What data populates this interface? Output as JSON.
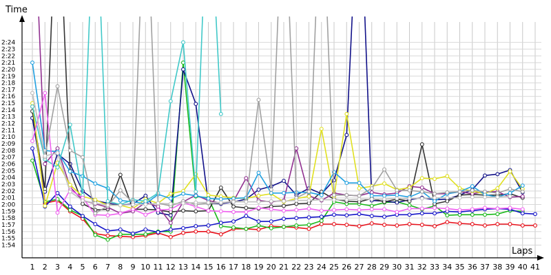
{
  "chart_data": {
    "type": "line",
    "title": "",
    "xlabel": "Laps",
    "ylabel": "Time",
    "grid": true,
    "legend": "none",
    "x": [
      1,
      2,
      3,
      4,
      5,
      6,
      7,
      8,
      9,
      10,
      11,
      12,
      13,
      14,
      15,
      16,
      17,
      18,
      19,
      20,
      21,
      22,
      23,
      24,
      25,
      26,
      27,
      28,
      29,
      30,
      31,
      32,
      33,
      34,
      35,
      36,
      37,
      38,
      39,
      40,
      41
    ],
    "x_tick_labels": [
      "1",
      "2",
      "3",
      "4",
      "5",
      "6",
      "7",
      "8",
      "9",
      "10",
      "11",
      "12",
      "13",
      "14",
      "15",
      "16",
      "17",
      "18",
      "19",
      "20",
      "21",
      "22",
      "23",
      "24",
      "25",
      "26",
      "27",
      "28",
      "29",
      "30",
      "31",
      "32",
      "33",
      "34",
      "35",
      "36",
      "37",
      "38",
      "39",
      "40",
      "41"
    ],
    "y_tick_labels": [
      "1:54",
      "1:55",
      "1:56",
      "1:57",
      "1:58",
      "1:59",
      "2:00",
      "2:01",
      "2:02",
      "2:03",
      "2:04",
      "2:05",
      "2:06",
      "2:07",
      "2:08",
      "2:09",
      "2:10",
      "2:11",
      "2:12",
      "2:13",
      "2:14",
      "2:15",
      "2:16",
      "2:17",
      "2:18",
      "2:19",
      "2:20",
      "2:21",
      "2:22",
      "2:23",
      "2:24"
    ],
    "y_tick_values": [
      114,
      115,
      116,
      117,
      118,
      119,
      120,
      121,
      122,
      123,
      124,
      125,
      126,
      127,
      128,
      129,
      130,
      131,
      132,
      133,
      134,
      135,
      136,
      137,
      138,
      139,
      140,
      141,
      142,
      143,
      144
    ],
    "y_unit": "seconds",
    "ylim": [
      113,
      146
    ],
    "xlim": [
      0.5,
      41.5
    ],
    "series": [
      {
        "color": "#e8101a",
        "values": [
          134.5,
          120.2,
          120.6,
          119,
          117.9,
          115.7,
          115.4,
          115.3,
          115.2,
          115.4,
          115.8,
          115.2,
          115.8,
          116,
          116,
          115.6,
          116.4,
          116.4,
          116.3,
          116.8,
          116.7,
          116.6,
          116.4,
          117.1,
          117.1,
          117,
          116.8,
          117.2,
          117,
          116.9,
          117.1,
          117,
          116.8,
          117.4,
          117.2,
          117.1,
          116.9,
          117.1,
          117.1,
          116.9,
          116.9
        ]
      },
      {
        "color": "#18b818",
        "values": [
          126.5,
          120.4,
          120.8,
          119.2,
          118.3,
          115.5,
          114.8,
          115.6,
          115.6,
          115.6,
          116,
          116,
          141,
          121.2,
          121,
          116.8,
          116.6,
          116.4,
          116.9,
          116.5,
          116.7,
          116.9,
          117,
          117.6,
          120.4,
          120.1,
          120.1,
          119.8,
          120.3,
          120.4,
          119.9,
          119.3,
          119.8,
          118.4,
          118.5,
          118.5,
          118.5,
          118.6,
          119.1,
          119,
          null
        ]
      },
      {
        "color": "#1414c8",
        "values": [
          128.3,
          119.7,
          121.7,
          119.7,
          118.3,
          117.1,
          116.1,
          116.3,
          115.7,
          116.3,
          115.9,
          116.3,
          116.5,
          116.8,
          116.9,
          117.3,
          117.5,
          118.3,
          117.5,
          117.5,
          117.9,
          118,
          118.1,
          118.2,
          118.5,
          118.4,
          118.6,
          118.3,
          118.2,
          118.5,
          118.5,
          118.7,
          118.7,
          119,
          118.9,
          119.1,
          119.3,
          119.4,
          119.3,
          118.7,
          118.6
        ]
      },
      {
        "color": "#101088",
        "values": [
          132.8,
          121.9,
          127.5,
          126,
          122,
          120.6,
          120.2,
          119.9,
          120.1,
          121.3,
          118.8,
          118.4,
          140,
          134.9,
          120.2,
          120.1,
          120.4,
          120.8,
          122.2,
          122.7,
          123.5,
          121.4,
          122.4,
          121.6,
          123.6,
          130.3,
          170,
          120.6,
          120.5,
          120.3,
          120.7,
          121,
          120.7,
          120.8,
          121.4,
          122.2,
          124.3,
          124.5,
          125.1,
          121.8,
          null
        ]
      },
      {
        "color": "#333333",
        "values": [
          133.8,
          122.3,
          170,
          125,
          120.1,
          119.2,
          119.3,
          124.4,
          119.3,
          119.3,
          119.2,
          118.9,
          119.1,
          119,
          119.1,
          122.5,
          119.7,
          119.5,
          119.4,
          119.7,
          119.8,
          120.1,
          120.2,
          121.9,
          120.8,
          120.5,
          120.4,
          120.9,
          120.4,
          120.8,
          120.5,
          128.9,
          120.1,
          120.5,
          121.4,
          121.5,
          121.4,
          121.4,
          121.6,
          121,
          null
        ]
      },
      {
        "color": "#903090",
        "values": [
          170,
          126,
          128.3,
          122.6,
          120.6,
          120.1,
          119.6,
          118.7,
          119,
          120.3,
          119.7,
          117.3,
          120.4,
          121.4,
          120.6,
          120.2,
          120.5,
          123.9,
          120.6,
          120.4,
          120.6,
          128.3,
          121.3,
          120.6,
          121.7,
          121.4,
          121.3,
          121.8,
          121.5,
          121.7,
          122.7,
          122.5,
          121.6,
          121.6,
          121.9,
          121.6,
          121.9,
          121.9,
          121.1,
          121.2,
          null
        ]
      },
      {
        "color": "#e0e020",
        "values": [
          135,
          119.8,
          126.2,
          122.9,
          121.2,
          120.7,
          119.9,
          119.9,
          119.4,
          120.8,
          120.2,
          121.6,
          122,
          124.5,
          121.4,
          121.2,
          121,
          120.9,
          121.3,
          121.6,
          120.4,
          120.9,
          121.2,
          131.2,
          121.2,
          133.4,
          122.4,
          122.7,
          123.1,
          122.2,
          122.5,
          123.9,
          123.8,
          124.2,
          122.4,
          122,
          121.6,
          122.4,
          124.9,
          122.3,
          null
        ]
      },
      {
        "color": "#20a0e0",
        "values": [
          141,
          128,
          127.8,
          124.9,
          124.2,
          123.1,
          122.4,
          120.6,
          120.4,
          120.1,
          121.5,
          120.9,
          121.6,
          121.3,
          120.9,
          120.8,
          120.9,
          121,
          124.7,
          121.7,
          121.7,
          121.8,
          121.8,
          121.4,
          124.8,
          123.2,
          123.2,
          121.3,
          121.3,
          121.4,
          121.1,
          121.9,
          120.5,
          121.6,
          121.9,
          122.7,
          121.5,
          121.1,
          121.7,
          122.8,
          null
        ]
      },
      {
        "color": "#40c8c8",
        "values": [
          134.5,
          126.7,
          125.5,
          131.8,
          121.4,
          170,
          120.5,
          120,
          120.7,
          120.5,
          121.7,
          135.3,
          144,
          121.9,
          170,
          133.4,
          null,
          null,
          null,
          null,
          null,
          null,
          null,
          null,
          null,
          null,
          null,
          null,
          null,
          null,
          null,
          null,
          null,
          null,
          null,
          null,
          null,
          null,
          null,
          null,
          null
        ]
      },
      {
        "color": "#f060f0",
        "values": [
          129.4,
          136.5,
          118.8,
          122.2,
          121,
          118.5,
          118.4,
          118.7,
          119.3,
          118.5,
          119.2,
          119.3,
          120.3,
          119.7,
          119.1,
          119,
          118.9,
          118.9,
          119.5,
          119.3,
          119.1,
          119.2,
          119.4,
          119.1,
          119.2,
          119.3,
          119.2,
          119.3,
          119.3,
          118.9,
          119.4,
          119.4,
          119.5,
          119.4,
          119.2,
          119.3,
          119.5,
          119.4,
          119.5,
          119.3,
          null
        ]
      },
      {
        "color": "#a0a0a0",
        "values": [
          136.5,
          127,
          137.5,
          128,
          127,
          118.7,
          119.8,
          122.1,
          120.3,
          170,
          120.2,
          119.8,
          120.5,
          120,
          120.2,
          120.2,
          120.5,
          120.4,
          135.5,
          122.2,
          170,
          121,
          121.9,
          170,
          121.4,
          121.4,
          121.3,
          122.4,
          125.2,
          122.1,
          122.1,
          121.9,
          121.6,
          121.8,
          121.9,
          122.1,
          121.9,
          121.7,
          122.3,
          121.9,
          null
        ]
      },
      {
        "color": "#c0c0c0",
        "values": [
          136.5,
          127.2,
          127.6,
          121.9,
          120.6,
          120.2,
          119.9,
          119.9,
          120,
          120,
          120.2,
          120.1,
          120.2,
          120.3,
          120.3,
          120.3,
          120.4,
          120.4,
          120.4,
          120.5,
          120.5,
          120.6,
          120.6,
          120.7,
          120.7,
          120.7,
          120.8,
          120.8,
          120.8,
          120.9,
          120.9,
          120.9,
          121,
          121,
          121,
          121.1,
          121.1,
          121.1,
          121.2,
          null,
          null
        ]
      }
    ]
  }
}
